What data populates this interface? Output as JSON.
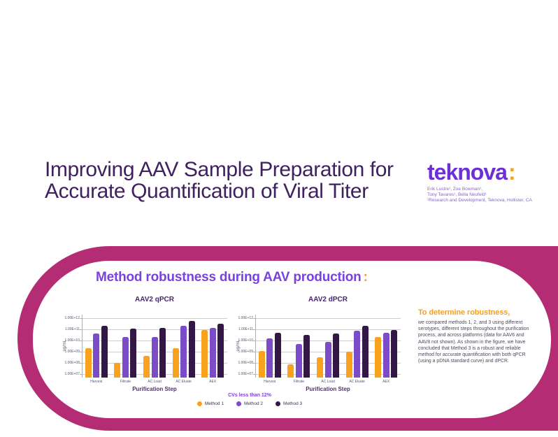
{
  "title": {
    "line1": "Improving AAV Sample Preparation for",
    "line2": "Accurate Quantification of Viral Titer"
  },
  "brand": {
    "logo_text": "teknova",
    "logo_colon": ":",
    "authors_line1": "Erik Lustre¹, Zoe Bowman¹,",
    "authors_line2": "Tony Tavares¹, Bella Neufeld¹",
    "affiliation": "¹Research and Development, Teknova, Hollister, CA"
  },
  "panel": {
    "heading": "Method robustness during AAV production",
    "heading_colon": ":",
    "legend_note": "CVs less than 12%",
    "legend": [
      {
        "label": "Method 1",
        "color": "#F9A21D"
      },
      {
        "label": "Method 2",
        "color": "#7B4BC8"
      },
      {
        "label": "Method 3",
        "color": "#331845"
      }
    ],
    "note_title": "To determine robustness,",
    "note_body": "we compared methods 1, 2, and 3 using different serotypes, different steps throughout the purification process, and across platforms (data for AAV6 and AAV8 not shown). As shown in the figure, we have concluded that Method 3 is a robust and reliable method for accurate quantification with both qPCR (using a pDNA standard curve) and dPCR."
  },
  "colors": {
    "magenta_frame": "#B42C74",
    "accent_violet": "#7A42DB",
    "title_purple": "#3F2160",
    "logo_purple": "#6D2FD6",
    "accent_orange": "#F5A01E",
    "method1": "#F9A21D",
    "method2": "#7B4BC8",
    "method3": "#331845"
  },
  "chart_data": [
    {
      "type": "bar",
      "title": "AAV2 qPCR",
      "xlabel": "Purification Step",
      "ylabel": "vg/mL",
      "y_scale": "log",
      "ylim": [
        10000000.0,
        1000000000000.0
      ],
      "y_ticks": [
        "1.00E+12",
        "1.00E+11",
        "1.00E+10",
        "1.00E+09",
        "1.00E+08",
        "1.00E+07"
      ],
      "grid": true,
      "legend_position": "none",
      "categories": [
        "Harvest",
        "Filtrate",
        "AC Load",
        "AC Eluate",
        "AEX"
      ],
      "series": [
        {
          "name": "Method 1",
          "color": "#F9A21D",
          "values": [
            2000000000.0,
            100000000.0,
            400000000.0,
            2000000000.0,
            90000000000.0
          ]
        },
        {
          "name": "Method 2",
          "color": "#7B4BC8",
          "values": [
            40000000000.0,
            20000000000.0,
            20000000000.0,
            200000000000.0,
            130000000000.0
          ]
        },
        {
          "name": "Method 3",
          "color": "#331845",
          "values": [
            200000000000.0,
            110000000000.0,
            130000000000.0,
            600000000000.0,
            300000000000.0
          ]
        }
      ]
    },
    {
      "type": "bar",
      "title": "AAV2 dPCR",
      "xlabel": "Purification Step",
      "ylabel": "vg/mL",
      "y_scale": "log",
      "ylim": [
        10000000.0,
        1000000000000.0
      ],
      "y_ticks": [
        "1.00E+12",
        "1.00E+11",
        "1.00E+10",
        "1.00E+09",
        "1.00E+08",
        "1.00E+07"
      ],
      "grid": true,
      "legend_position": "none",
      "categories": [
        "Harvest",
        "Filtrate",
        "AC Load",
        "AC Eluate",
        "AEX"
      ],
      "series": [
        {
          "name": "Method 1",
          "color": "#F9A21D",
          "values": [
            1200000000.0,
            80000000.0,
            300000000.0,
            1000000000.0,
            20000000000.0
          ]
        },
        {
          "name": "Method 2",
          "color": "#7B4BC8",
          "values": [
            15000000000.0,
            5000000000.0,
            8000000000.0,
            80000000000.0,
            50000000000.0
          ]
        },
        {
          "name": "Method 3",
          "color": "#331845",
          "values": [
            50000000000.0,
            30000000000.0,
            40000000000.0,
            200000000000.0,
            90000000000.0
          ]
        }
      ]
    }
  ]
}
